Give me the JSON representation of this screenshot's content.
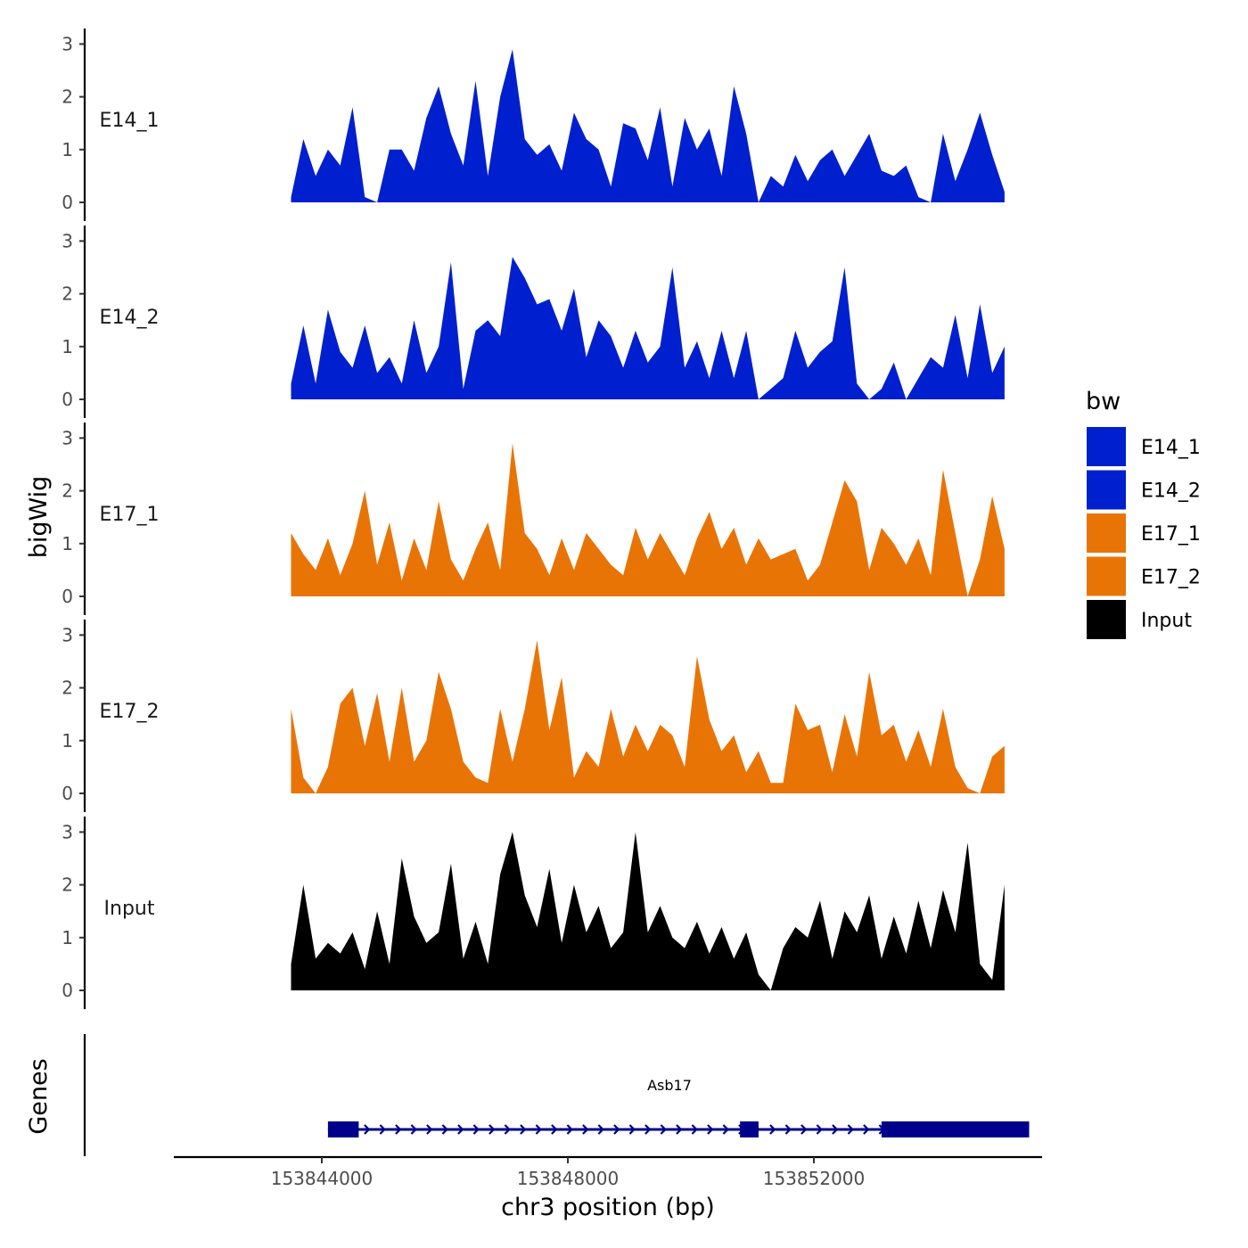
{
  "chart_data": {
    "type": "area",
    "ylabel": "bigWig",
    "xlabel": "chr3 position (bp)",
    "gene_panel_label": "Genes",
    "x_range": [
      153841400,
      153855500
    ],
    "x_ticks": [
      153844000,
      153848000,
      153852000
    ],
    "x_tick_labels": [
      "153844000",
      "153848000",
      "153852000"
    ],
    "y_ticks": [
      0,
      1,
      2,
      3
    ],
    "y_tick_labels": [
      "0",
      "1",
      "2",
      "3"
    ],
    "ylim": [
      0,
      3.3
    ],
    "colors": {
      "E14_1": "#0020CF",
      "E14_2": "#0020CF",
      "E17_1": "#E97406",
      "E17_2": "#E97406",
      "Input": "#000000",
      "gene": "#00008B"
    },
    "legend": {
      "title": "bw",
      "entries": [
        {
          "name": "E14_1",
          "color": "#0020CF"
        },
        {
          "name": "E14_2",
          "color": "#0020CF"
        },
        {
          "name": "E17_1",
          "color": "#E97406"
        },
        {
          "name": "E17_2",
          "color": "#E97406"
        },
        {
          "name": "Input",
          "color": "#000000"
        }
      ]
    },
    "series": [
      {
        "name": "E14_1",
        "x": [
          153843500,
          153843700,
          153843900,
          153844100,
          153844300,
          153844500,
          153844700,
          153844900,
          153845100,
          153845300,
          153845500,
          153845700,
          153845900,
          153846100,
          153846300,
          153846500,
          153846700,
          153846900,
          153847100,
          153847300,
          153847500,
          153847700,
          153847900,
          153848100,
          153848300,
          153848500,
          153848700,
          153848900,
          153849100,
          153849300,
          153849500,
          153849700,
          153849900,
          153850100,
          153850300,
          153850500,
          153850700,
          153850900,
          153851100,
          153851300,
          153851500,
          153851700,
          153851900,
          153852100,
          153852300,
          153852500,
          153852700,
          153852900,
          153853100,
          153853300,
          153853500,
          153853700,
          153853900,
          153854100,
          153854300,
          153854500,
          153854700,
          153854900,
          153855100
        ],
        "values": [
          0.1,
          1.2,
          0.5,
          1.0,
          0.7,
          1.8,
          0.1,
          0.0,
          1.0,
          1.0,
          0.6,
          1.6,
          2.2,
          1.3,
          0.7,
          2.3,
          0.5,
          2.0,
          2.9,
          1.2,
          0.9,
          1.1,
          0.6,
          1.7,
          1.2,
          1.0,
          0.3,
          1.5,
          1.4,
          0.8,
          1.8,
          0.3,
          1.6,
          1.0,
          1.4,
          0.5,
          2.2,
          1.3,
          0.0,
          0.5,
          0.3,
          0.9,
          0.4,
          0.8,
          1.0,
          0.5,
          0.9,
          1.3,
          0.6,
          0.5,
          0.7,
          0.1,
          0.0,
          1.3,
          0.4,
          1.0,
          1.7,
          0.9,
          0.2
        ]
      },
      {
        "name": "E14_2",
        "x": [
          153843500,
          153843700,
          153843900,
          153844100,
          153844300,
          153844500,
          153844700,
          153844900,
          153845100,
          153845300,
          153845500,
          153845700,
          153845900,
          153846100,
          153846300,
          153846500,
          153846700,
          153846900,
          153847100,
          153847300,
          153847500,
          153847700,
          153847900,
          153848100,
          153848300,
          153848500,
          153848700,
          153848900,
          153849100,
          153849300,
          153849500,
          153849700,
          153849900,
          153850100,
          153850300,
          153850500,
          153850700,
          153850900,
          153851100,
          153851300,
          153851500,
          153851700,
          153851900,
          153852100,
          153852300,
          153852500,
          153852700,
          153852900,
          153853100,
          153853300,
          153853500,
          153853700,
          153853900,
          153854100,
          153854300,
          153854500,
          153854700,
          153854900,
          153855100
        ],
        "values": [
          0.3,
          1.4,
          0.3,
          1.7,
          0.9,
          0.6,
          1.4,
          0.5,
          0.8,
          0.3,
          1.5,
          0.5,
          1.0,
          2.6,
          0.2,
          1.3,
          1.5,
          1.2,
          2.7,
          2.3,
          1.8,
          1.9,
          1.3,
          2.1,
          0.8,
          1.5,
          1.2,
          0.6,
          1.3,
          0.7,
          1.0,
          2.5,
          0.6,
          1.1,
          0.4,
          1.3,
          0.4,
          1.3,
          0.0,
          0.2,
          0.4,
          1.3,
          0.6,
          0.9,
          1.1,
          2.5,
          0.3,
          0.0,
          0.2,
          0.7,
          0.0,
          0.4,
          0.8,
          0.6,
          1.6,
          0.4,
          1.8,
          0.5,
          1.0
        ]
      },
      {
        "name": "E17_1",
        "x": [
          153843500,
          153843700,
          153843900,
          153844100,
          153844300,
          153844500,
          153844700,
          153844900,
          153845100,
          153845300,
          153845500,
          153845700,
          153845900,
          153846100,
          153846300,
          153846500,
          153846700,
          153846900,
          153847100,
          153847300,
          153847500,
          153847700,
          153847900,
          153848100,
          153848300,
          153848500,
          153848700,
          153848900,
          153849100,
          153849300,
          153849500,
          153849700,
          153849900,
          153850100,
          153850300,
          153850500,
          153850700,
          153850900,
          153851100,
          153851300,
          153851500,
          153851700,
          153851900,
          153852100,
          153852300,
          153852500,
          153852700,
          153852900,
          153853100,
          153853300,
          153853500,
          153853700,
          153853900,
          153854100,
          153854300,
          153854500,
          153854700,
          153854900,
          153855100
        ],
        "values": [
          1.2,
          0.8,
          0.5,
          1.1,
          0.4,
          1.0,
          2.0,
          0.6,
          1.4,
          0.3,
          1.1,
          0.5,
          1.8,
          0.7,
          0.3,
          0.9,
          1.4,
          0.5,
          2.9,
          1.2,
          0.9,
          0.4,
          1.1,
          0.5,
          1.2,
          0.9,
          0.6,
          0.4,
          1.3,
          0.7,
          1.2,
          0.8,
          0.4,
          1.1,
          1.6,
          0.9,
          1.3,
          0.6,
          1.1,
          0.7,
          0.8,
          0.9,
          0.3,
          0.6,
          1.4,
          2.2,
          1.8,
          0.5,
          1.3,
          1.0,
          0.6,
          1.1,
          0.4,
          2.4,
          1.2,
          0.0,
          0.7,
          1.9,
          0.9
        ]
      },
      {
        "name": "E17_2",
        "x": [
          153843500,
          153843700,
          153843900,
          153844100,
          153844300,
          153844500,
          153844700,
          153844900,
          153845100,
          153845300,
          153845500,
          153845700,
          153845900,
          153846100,
          153846300,
          153846500,
          153846700,
          153846900,
          153847100,
          153847300,
          153847500,
          153847700,
          153847900,
          153848100,
          153848300,
          153848500,
          153848700,
          153848900,
          153849100,
          153849300,
          153849500,
          153849700,
          153849900,
          153850100,
          153850300,
          153850500,
          153850700,
          153850900,
          153851100,
          153851300,
          153851500,
          153851700,
          153851900,
          153852100,
          153852300,
          153852500,
          153852700,
          153852900,
          153853100,
          153853300,
          153853500,
          153853700,
          153853900,
          153854100,
          153854300,
          153854500,
          153854700,
          153854900,
          153855100
        ],
        "values": [
          1.6,
          0.3,
          0.0,
          0.5,
          1.7,
          2.0,
          0.9,
          1.9,
          0.6,
          2.0,
          0.6,
          1.0,
          2.3,
          1.6,
          0.6,
          0.3,
          0.2,
          1.6,
          0.6,
          1.6,
          2.9,
          1.2,
          2.2,
          0.3,
          0.8,
          0.5,
          1.6,
          0.7,
          1.3,
          0.8,
          1.3,
          1.1,
          0.5,
          2.6,
          1.4,
          0.8,
          1.1,
          0.4,
          0.8,
          0.2,
          0.2,
          1.7,
          1.2,
          1.3,
          0.4,
          1.5,
          0.7,
          2.3,
          1.1,
          1.3,
          0.6,
          1.2,
          0.5,
          1.6,
          0.5,
          0.1,
          0.0,
          0.7,
          0.9
        ]
      },
      {
        "name": "Input",
        "x": [
          153843500,
          153843700,
          153843900,
          153844100,
          153844300,
          153844500,
          153844700,
          153844900,
          153845100,
          153845300,
          153845500,
          153845700,
          153845900,
          153846100,
          153846300,
          153846500,
          153846700,
          153846900,
          153847100,
          153847300,
          153847500,
          153847700,
          153847900,
          153848100,
          153848300,
          153848500,
          153848700,
          153848900,
          153849100,
          153849300,
          153849500,
          153849700,
          153849900,
          153850100,
          153850300,
          153850500,
          153850700,
          153850900,
          153851100,
          153851300,
          153851500,
          153851700,
          153851900,
          153852100,
          153852300,
          153852500,
          153852700,
          153852900,
          153853100,
          153853300,
          153853500,
          153853700,
          153853900,
          153854100,
          153854300,
          153854500,
          153854700,
          153854900,
          153855100
        ],
        "values": [
          0.5,
          2.0,
          0.6,
          0.9,
          0.7,
          1.1,
          0.4,
          1.5,
          0.5,
          2.5,
          1.4,
          0.9,
          1.1,
          2.4,
          0.6,
          1.3,
          0.5,
          2.2,
          3.0,
          1.8,
          1.2,
          2.3,
          0.9,
          2.0,
          1.1,
          1.6,
          0.8,
          1.1,
          3.0,
          1.1,
          1.6,
          1.0,
          0.8,
          1.3,
          0.7,
          1.2,
          0.6,
          1.1,
          0.3,
          0.0,
          0.8,
          1.2,
          1.0,
          1.7,
          0.6,
          1.5,
          1.1,
          1.8,
          0.6,
          1.4,
          0.7,
          1.7,
          0.8,
          1.9,
          1.1,
          2.8,
          0.5,
          0.2,
          2.0
        ]
      }
    ],
    "gene": {
      "name": "Asb17",
      "start": 153844100,
      "end": 153855500,
      "exons": [
        [
          153844100,
          153844600
        ],
        [
          153850800,
          153851100
        ],
        [
          153853100,
          153855500
        ]
      ]
    }
  }
}
